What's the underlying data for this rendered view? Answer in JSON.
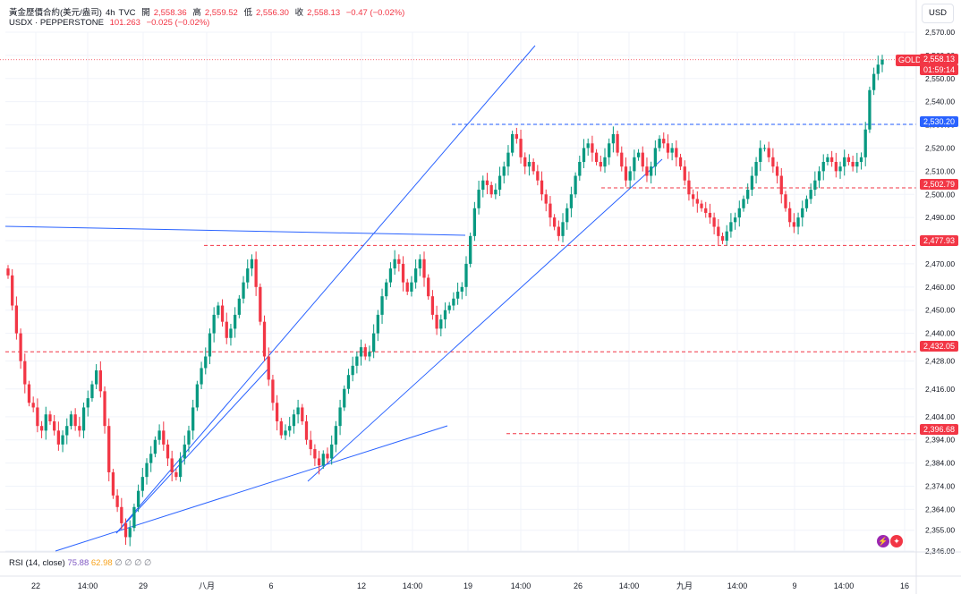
{
  "header": {
    "title": "黃金歷價合約(美元/盎司)",
    "interval": "4h",
    "source": "TVC",
    "open_label": "開",
    "open": "2,558.36",
    "high_label": "高",
    "high": "2,559.52",
    "low_label": "低",
    "low": "2,556.30",
    "close_label": "收",
    "close": "2,558.13",
    "change": "−0.47 (−0.02%)",
    "compare_symbol": "USDX · PEPPERSTONE",
    "compare_value": "101.263",
    "compare_change": "−0.025 (−0.02%)"
  },
  "currency_button": "USD",
  "symbol_tag": "GOLD",
  "countdown": "01:59:14",
  "rsi": {
    "label": "RSI (14, close)",
    "value1": "75.88",
    "value2": "62.98",
    "placeholders": "∅ ∅ ∅ ∅"
  },
  "colors": {
    "up": "#089981",
    "down": "#f23645",
    "trendline": "#2962ff",
    "blue_level": "#2962ff"
  },
  "price_tags": [
    "2,558.13",
    "2,530.20",
    "2,502.79",
    "2,477.93",
    "2,432.05",
    "2,396.68"
  ],
  "chart_data": {
    "type": "candlestick",
    "ylim": [
      2346,
      2570
    ],
    "y_ticks": [
      "2,570.00",
      "2,560.00",
      "2,550.00",
      "2,540.00",
      "2,530.00",
      "2,520.00",
      "2,510.00",
      "2,500.00",
      "2,490.00",
      "2,480.00",
      "2,470.00",
      "2,460.00",
      "2,450.00",
      "2,440.00",
      "2,428.00",
      "2,416.00",
      "2,404.00",
      "2,394.00",
      "2,384.00",
      "2,374.00",
      "2,364.00",
      "2,355.00",
      "2,346.00"
    ],
    "x_ticks": [
      "22",
      "14:00",
      "29",
      "八月",
      "6",
      "12",
      "14:00",
      "19",
      "14:00",
      "26",
      "14:00",
      "九月",
      "14:00",
      "9",
      "14:00",
      "16"
    ],
    "closes": [
      2465,
      2452,
      2440,
      2428,
      2418,
      2410,
      2408,
      2400,
      2398,
      2405,
      2402,
      2398,
      2392,
      2396,
      2400,
      2405,
      2400,
      2398,
      2408,
      2412,
      2418,
      2424,
      2415,
      2400,
      2380,
      2370,
      2365,
      2358,
      2352,
      2356,
      2365,
      2372,
      2378,
      2384,
      2388,
      2394,
      2398,
      2392,
      2386,
      2380,
      2378,
      2386,
      2392,
      2398,
      2408,
      2418,
      2425,
      2430,
      2440,
      2448,
      2452,
      2445,
      2438,
      2442,
      2448,
      2455,
      2462,
      2468,
      2472,
      2460,
      2445,
      2430,
      2420,
      2410,
      2402,
      2396,
      2398,
      2400,
      2405,
      2408,
      2402,
      2394,
      2390,
      2386,
      2383,
      2388,
      2386,
      2392,
      2400,
      2408,
      2416,
      2422,
      2426,
      2430,
      2434,
      2430,
      2432,
      2440,
      2448,
      2456,
      2462,
      2468,
      2472,
      2470,
      2462,
      2458,
      2462,
      2468,
      2472,
      2464,
      2456,
      2448,
      2442,
      2446,
      2450,
      2452,
      2455,
      2458,
      2460,
      2470,
      2482,
      2494,
      2502,
      2506,
      2504,
      2500,
      2502,
      2508,
      2512,
      2518,
      2526,
      2524,
      2516,
      2512,
      2514,
      2510,
      2506,
      2500,
      2496,
      2490,
      2486,
      2482,
      2488,
      2494,
      2500,
      2508,
      2514,
      2520,
      2522,
      2518,
      2514,
      2512,
      2516,
      2522,
      2526,
      2518,
      2512,
      2506,
      2510,
      2516,
      2518,
      2512,
      2508,
      2512,
      2520,
      2524,
      2522,
      2518,
      2520,
      2516,
      2512,
      2506,
      2500,
      2498,
      2496,
      2494,
      2492,
      2490,
      2486,
      2482,
      2480,
      2484,
      2488,
      2490,
      2494,
      2498,
      2502,
      2508,
      2514,
      2520,
      2520,
      2516,
      2512,
      2508,
      2500,
      2494,
      2488,
      2486,
      2490,
      2494,
      2498,
      2502,
      2506,
      2510,
      2514,
      2516,
      2514,
      2510,
      2512,
      2516,
      2514,
      2512,
      2514,
      2516,
      2528,
      2545,
      2552,
      2556,
      2558.13
    ]
  }
}
